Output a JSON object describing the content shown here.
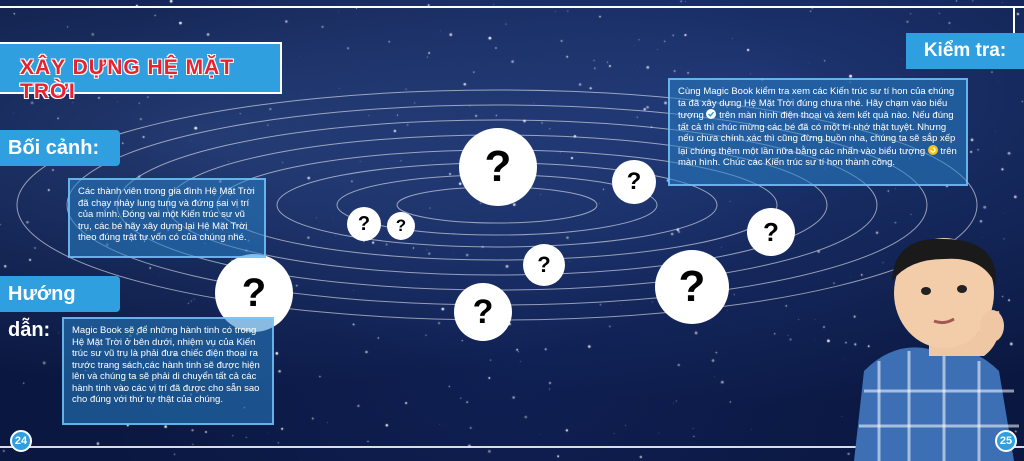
{
  "header": {
    "title": "XÂY DỰNG HỆ MẶT TRỜI"
  },
  "sections": {
    "context_label": "Bối cảnh:",
    "context_text": "Các thành viên trong gia đình Hệ Mặt Trời đã chạy nhảy lung tung và đứng sai vị trí của mình. Đóng vai một Kiến trúc sư vũ trụ, các bé hãy xây dựng lại Hệ Mặt Trời theo đúng trật tự vốn có của chúng nhé.",
    "guide_label": "Hướng dẫn:",
    "guide_text": "Magic Book sẽ để những hành tinh có trong Hệ Mặt Trời ở bên dưới, nhiệm vụ của Kiến trúc sư vũ trụ là phải đưa chiếc điện thoại ra trước trang sách,các hành tinh sẽ được hiện lên và chúng ta sẽ phải di chuyển tất cả các hành tinh vào các vị trí đã được cho sẵn sao cho đúng với thứ tự thật của chúng.",
    "check_label": "Kiểm tra:",
    "check_text_1": "Cùng Magic Book kiểm tra xem các Kiến trúc sư tí hon của chúng ta đã xây dựng Hệ Mặt Trời đúng chưa nhé. Hãy chạm vào biểu tượng",
    "check_text_2": "trên màn hình điện thoại và xem kết quả nào. Nếu đúng tất cả thì chúc mừng các bé đã có một trí nhớ thật tuyệt. Nhưng nếu chưa chính xác thì cũng đừng buồn nha, chúng ta sẽ sắp xếp lại chúng thêm một lần nữa bằng các nhấn vào biểu tượng",
    "check_text_3": "trên màn hình. Chúc các Kiến trúc sư tí hon thành công."
  },
  "icons": {
    "check": "check-circle-icon",
    "reset": "reset-circle-icon"
  },
  "planet_mark": "?",
  "pages": {
    "left": "24",
    "right": "25"
  },
  "colors": {
    "accent": "#2f9fe0",
    "title": "#e8232f",
    "space": "#0a1740"
  }
}
